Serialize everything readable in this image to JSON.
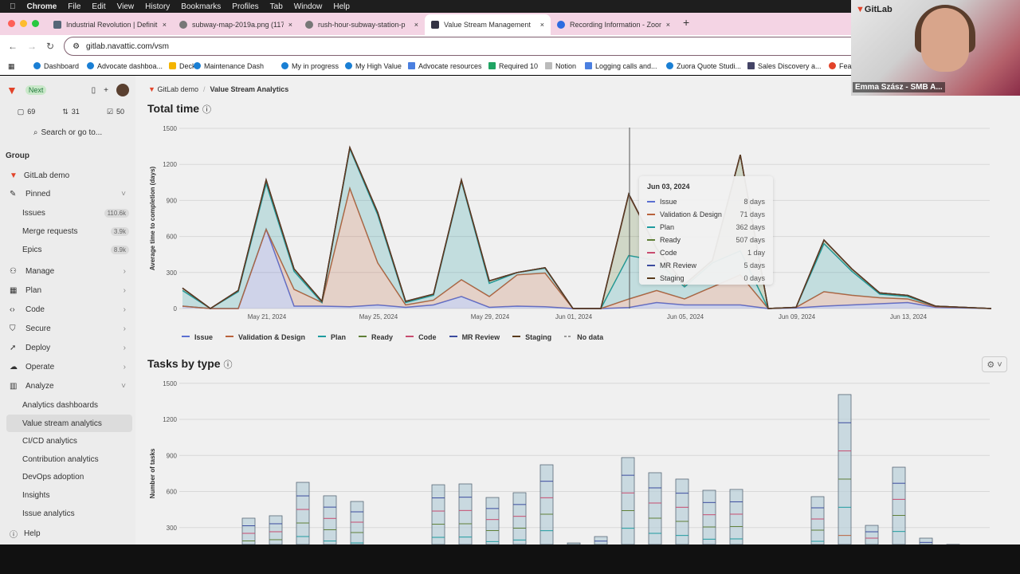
{
  "menubar": {
    "items": [
      "Chrome",
      "File",
      "Edit",
      "View",
      "History",
      "Bookmarks",
      "Profiles",
      "Tab",
      "Window",
      "Help"
    ]
  },
  "tabs": [
    {
      "label": "Industrial Revolution | Definit"
    },
    {
      "label": "subway-map-2019a.png (117"
    },
    {
      "label": "rush-hour-subway-station-p"
    },
    {
      "label": "Value Stream Management",
      "active": true
    },
    {
      "label": "Recording Information - Zoom"
    }
  ],
  "address": {
    "url": "gitlab.navattic.com/vsm"
  },
  "bookmarks": [
    "Dashboard",
    "Advocate dashboa...",
    "Deck",
    "Maintenance Dash",
    "My in progress",
    "My High Value",
    "Advocate resources",
    "Required 10",
    "Notion",
    "Logging calls and...",
    "Zuora Quote Studi...",
    "Sales Discovery a...",
    "Fea"
  ],
  "sidebar": {
    "next_badge": "Next",
    "counts": {
      "issues": "69",
      "mrs": "31",
      "todos": "50"
    },
    "search": "Search or go to...",
    "group_heading": "Group",
    "group_name": "GitLab demo",
    "items": [
      {
        "label": "Pinned",
        "icon": "pin-icon"
      },
      {
        "label": "Issues",
        "badge": "110.6k"
      },
      {
        "label": "Merge requests",
        "badge": "3.9k"
      },
      {
        "label": "Epics",
        "badge": "8.9k"
      },
      {
        "label": "Manage",
        "icon": "users-icon"
      },
      {
        "label": "Plan",
        "icon": "calendar-icon"
      },
      {
        "label": "Code",
        "icon": "code-icon"
      },
      {
        "label": "Secure",
        "icon": "shield-icon"
      },
      {
        "label": "Deploy",
        "icon": "rocket-icon"
      },
      {
        "label": "Operate",
        "icon": "cloud-icon"
      },
      {
        "label": "Analyze",
        "icon": "chart-icon"
      },
      {
        "label": "Analytics dashboards"
      },
      {
        "label": "Value stream analytics",
        "selected": true
      },
      {
        "label": "CI/CD analytics"
      },
      {
        "label": "Contribution analytics"
      },
      {
        "label": "DevOps adoption"
      },
      {
        "label": "Insights"
      },
      {
        "label": "Issue analytics"
      }
    ],
    "help": "Help"
  },
  "breadcrumb": {
    "group": "GitLab demo",
    "page": "Value Stream Analytics"
  },
  "webcam": {
    "name": "Emma Szász - SMB A...",
    "logo": "GitLab"
  },
  "colors": {
    "Issue": "#5b6fd1",
    "Validation & Design": "#b9623c",
    "Plan": "#1e9b9f",
    "Ready": "#5f7f37",
    "Code": "#c84c6f",
    "MR Review": "#3b4b9e",
    "Staging": "#5a3b1c",
    "No data": "#999999"
  },
  "chart_data": [
    {
      "type": "area",
      "title": "Total time",
      "ylabel": "Average time to completion (days)",
      "ylim": [
        0,
        1500
      ],
      "yticks": [
        0,
        300,
        600,
        900,
        1200,
        1500
      ],
      "grid": true,
      "legend": "bottom",
      "xtick_labels": [
        "May 21, 2024",
        "May 25, 2024",
        "May 29, 2024",
        "Jun 01, 2024",
        "Jun 05, 2024",
        "Jun 09, 2024",
        "Jun 13, 2024"
      ],
      "x": [
        "May 18",
        "May 19",
        "May 20",
        "May 21",
        "May 22",
        "May 23",
        "May 24",
        "May 25",
        "May 26",
        "May 27",
        "May 28",
        "May 29",
        "May 30",
        "May 31",
        "Jun 01",
        "Jun 02",
        "Jun 03",
        "Jun 04",
        "Jun 05",
        "Jun 06",
        "Jun 07",
        "Jun 08",
        "Jun 09",
        "Jun 10",
        "Jun 11",
        "Jun 12",
        "Jun 13",
        "Jun 14",
        "Jun 15",
        "Jun 16"
      ],
      "series": [
        {
          "name": "Issue",
          "values": [
            20,
            0,
            0,
            660,
            20,
            20,
            15,
            30,
            10,
            30,
            100,
            10,
            20,
            15,
            0,
            0,
            8,
            50,
            30,
            30,
            30,
            0,
            5,
            20,
            30,
            40,
            50,
            10,
            5,
            0
          ]
        },
        {
          "name": "Validation & Design",
          "values": [
            0,
            0,
            0,
            0,
            140,
            30,
            985,
            350,
            20,
            40,
            140,
            90,
            260,
            280,
            0,
            0,
            71,
            100,
            50,
            150,
            250,
            0,
            5,
            120,
            80,
            50,
            30,
            5,
            3,
            0
          ]
        },
        {
          "name": "Plan",
          "values": [
            130,
            0,
            140,
            380,
            150,
            0,
            330,
            400,
            20,
            40,
            820,
            110,
            20,
            40,
            0,
            0,
            362,
            250,
            100,
            200,
            200,
            0,
            0,
            400,
            200,
            30,
            20,
            5,
            2,
            0
          ]
        },
        {
          "name": "Ready",
          "values": [
            20,
            0,
            10,
            30,
            20,
            10,
            10,
            20,
            10,
            10,
            10,
            20,
            0,
            5,
            0,
            0,
            507,
            100,
            20,
            20,
            800,
            0,
            0,
            30,
            20,
            10,
            10,
            0,
            0,
            0
          ]
        },
        {
          "name": "Code",
          "values": [
            0,
            0,
            0,
            0,
            0,
            0,
            0,
            0,
            0,
            0,
            0,
            0,
            0,
            0,
            0,
            0,
            1,
            0,
            0,
            0,
            0,
            0,
            0,
            0,
            0,
            0,
            0,
            0,
            0,
            0
          ]
        },
        {
          "name": "MR Review",
          "values": [
            0,
            0,
            0,
            0,
            0,
            0,
            0,
            0,
            0,
            0,
            0,
            0,
            0,
            0,
            0,
            0,
            5,
            0,
            0,
            0,
            0,
            0,
            0,
            0,
            0,
            0,
            0,
            0,
            0,
            0
          ]
        },
        {
          "name": "Staging",
          "values": [
            0,
            0,
            0,
            0,
            0,
            0,
            0,
            0,
            0,
            0,
            0,
            0,
            0,
            0,
            0,
            0,
            0,
            0,
            0,
            0,
            0,
            0,
            0,
            0,
            0,
            0,
            0,
            0,
            0,
            0
          ]
        }
      ],
      "legend_entries": [
        "Issue",
        "Validation & Design",
        "Plan",
        "Ready",
        "Code",
        "MR Review",
        "Staging",
        "No data"
      ],
      "tooltip": {
        "date": "Jun 03, 2024",
        "rows": [
          {
            "name": "Issue",
            "value": "8 days"
          },
          {
            "name": "Validation & Design",
            "value": "71 days"
          },
          {
            "name": "Plan",
            "value": "362 days"
          },
          {
            "name": "Ready",
            "value": "507 days"
          },
          {
            "name": "Code",
            "value": "1 day"
          },
          {
            "name": "MR Review",
            "value": "5 days"
          },
          {
            "name": "Staging",
            "value": "0 days"
          }
        ]
      }
    },
    {
      "type": "bar",
      "title": "Tasks by type",
      "ylabel": "Number of tasks",
      "ylim": [
        0,
        1500
      ],
      "yticks": [
        300,
        600,
        900,
        1200,
        1500
      ],
      "grid": true,
      "values": [
        378,
        398,
        676,
        564,
        517,
        null,
        null,
        656,
        663,
        550,
        590,
        822,
        172,
        225,
        882,
        756,
        703,
        610,
        617,
        null,
        null,
        557,
        1406,
        318,
        802,
        212,
        160
      ]
    }
  ]
}
